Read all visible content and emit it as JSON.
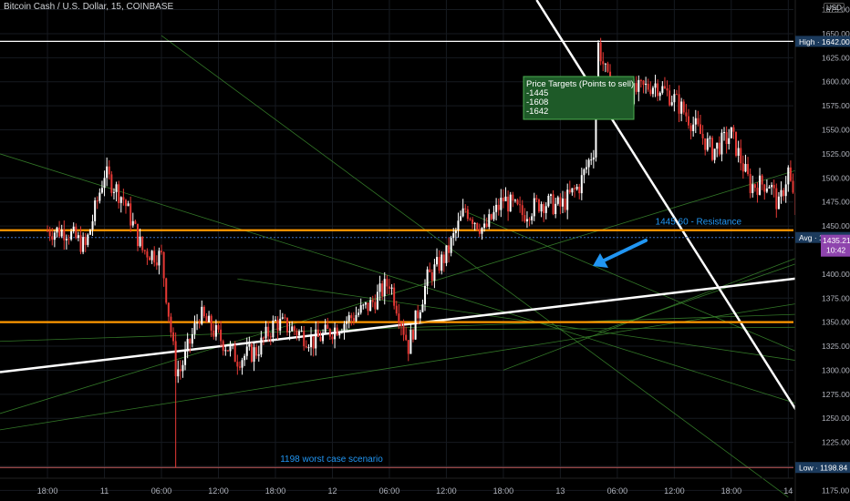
{
  "header": {
    "symbol_title": "Bitcoin Cash / U.S. Dollar, 15, COINBASE",
    "currency": "USD"
  },
  "chart_data": {
    "type": "candlestick",
    "x_tick_labels": [
      "18:00",
      "11",
      "06:00",
      "12:00",
      "18:00",
      "12",
      "06:00",
      "12:00",
      "18:00",
      "13",
      "06:00",
      "12:00",
      "18:00",
      "14"
    ],
    "y_ticks": [
      1675,
      1650,
      1625,
      1600,
      1575,
      1550,
      1525,
      1500,
      1475,
      1450,
      1425,
      1400,
      1375,
      1350,
      1325,
      1300,
      1275,
      1250,
      1225,
      1200,
      1175
    ],
    "y_tick_labels": [
      "1675.00",
      "1650.00",
      "1625.00",
      "1600.00",
      "1575.00",
      "1550.00",
      "1525.00",
      "1500.00",
      "1475.00",
      "1450.00",
      "1425.00",
      "1400.00",
      "1375.00",
      "1350.00",
      "1325.00",
      "1300.00",
      "1275.00",
      "1250.00",
      "1225.00",
      "1200.00",
      "1175.00"
    ],
    "ylim": [
      1164,
      1685
    ],
    "x_range_hours": [
      -5,
      84.5
    ],
    "grid": true,
    "price_path": [
      [
        0,
        1445
      ],
      [
        2,
        1445
      ],
      [
        4,
        1428
      ],
      [
        6,
        1505
      ],
      [
        8,
        1478
      ],
      [
        10,
        1425
      ],
      [
        12,
        1418
      ],
      [
        13.5,
        1302
      ],
      [
        14,
        1300
      ],
      [
        16,
        1358
      ],
      [
        18,
        1335
      ],
      [
        20,
        1312
      ],
      [
        22,
        1320
      ],
      [
        24,
        1350
      ],
      [
        26,
        1342
      ],
      [
        28,
        1330
      ],
      [
        30,
        1342
      ],
      [
        32,
        1355
      ],
      [
        34,
        1368
      ],
      [
        36,
        1392
      ],
      [
        37,
        1360
      ],
      [
        38,
        1325
      ],
      [
        40,
        1395
      ],
      [
        42,
        1420
      ],
      [
        44,
        1468
      ],
      [
        46,
        1445
      ],
      [
        48,
        1478
      ],
      [
        50,
        1462
      ],
      [
        52,
        1475
      ],
      [
        54,
        1470
      ],
      [
        56,
        1492
      ],
      [
        57.5,
        1530
      ],
      [
        58,
        1638
      ],
      [
        59,
        1600
      ],
      [
        60,
        1578
      ],
      [
        62,
        1590
      ],
      [
        64,
        1598
      ],
      [
        66,
        1582
      ],
      [
        68,
        1556
      ],
      [
        70,
        1528
      ],
      [
        72,
        1545
      ],
      [
        74,
        1492
      ],
      [
        76,
        1495
      ],
      [
        77,
        1470
      ],
      [
        78,
        1508
      ],
      [
        79.5,
        1420
      ],
      [
        80.5,
        1365
      ],
      [
        82,
        1405
      ],
      [
        84,
        1378
      ],
      [
        85,
        1428
      ],
      [
        86,
        1437
      ]
    ],
    "levels": [
      {
        "name": "high",
        "price": 1642.0,
        "label": "High",
        "value_label": "1642.00",
        "color": "#ffffff"
      },
      {
        "name": "resistance",
        "price": 1445.6,
        "annotation": "1445.60 - Resistance",
        "color": "#ff9800"
      },
      {
        "name": "average",
        "price": 1438.04,
        "label": "Avg",
        "value_label": "1438.04",
        "color": "#3a6ec0"
      },
      {
        "name": "support",
        "price": 1350,
        "color": "#ff9800"
      },
      {
        "name": "low",
        "price": 1198.84,
        "label": "Low",
        "value_label": "1198.84",
        "annotation": "1198 worst case scenario",
        "color": "#c45a5a"
      }
    ],
    "current_price": {
      "value": "1435.21",
      "countdown": "10:42",
      "color": "#8e44ad"
    },
    "annotation_box": {
      "lines": [
        "Price Targets (Points to sell)",
        "-1445",
        "-1608",
        "-1642"
      ],
      "background": "#1e5a28",
      "border": "#4caf50"
    },
    "colors": {
      "background": "#000000",
      "grid": "#161a20",
      "up_candle": "#ffffff",
      "down_candle": "#e53935",
      "green_lines": "#3b8a2e",
      "white_lines": "#ffffff",
      "arrow": "#2196f3",
      "label_text": "#2196f3"
    }
  }
}
